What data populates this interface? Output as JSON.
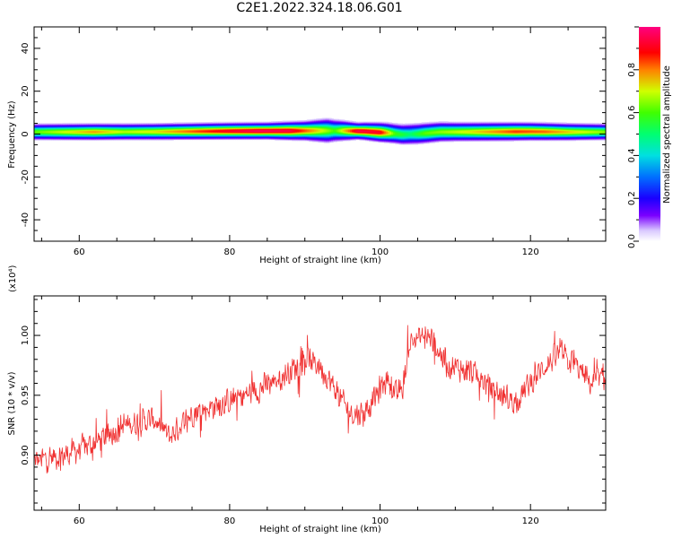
{
  "figure": {
    "title": "C2E1.2022.324.18.06.G01"
  },
  "colorbar": {
    "label": "Normalized spectral amplitude",
    "ticks": [
      "0.0",
      "0.2",
      "0.4",
      "0.6",
      "0.8"
    ],
    "range": [
      0,
      1
    ]
  },
  "chart_data": [
    {
      "type": "heatmap",
      "title": "C2E1.2022.324.18.06.G01",
      "xlabel": "Height of straight line (km)",
      "ylabel": "Frequency (Hz)",
      "xlim": [
        54,
        130
      ],
      "ylim": [
        -50,
        50
      ],
      "xticks": [
        "60",
        "80",
        "100",
        "120"
      ],
      "yticks": [
        "-40",
        "-20",
        "0",
        "20",
        "40"
      ],
      "colorscale": "rainbow (magenta-blue-cyan-green-yellow-red)",
      "band_center_hz": [
        [
          54,
          1.2
        ],
        [
          60,
          1.2
        ],
        [
          70,
          1.3
        ],
        [
          80,
          1.6
        ],
        [
          88,
          1.7
        ],
        [
          92,
          1.8
        ],
        [
          95,
          1.8
        ],
        [
          98,
          1.5
        ],
        [
          101,
          0.8
        ],
        [
          103,
          0.0
        ],
        [
          105,
          0.3
        ],
        [
          108,
          1.2
        ],
        [
          115,
          1.3
        ],
        [
          120,
          1.4
        ],
        [
          125,
          1.2
        ],
        [
          130,
          1.2
        ]
      ],
      "band_halfwidth_hz": [
        [
          54,
          3.0
        ],
        [
          70,
          3.0
        ],
        [
          85,
          3.0
        ],
        [
          90,
          3.5
        ],
        [
          93,
          4.5
        ],
        [
          97,
          3.0
        ],
        [
          100,
          3.5
        ],
        [
          104,
          4.0
        ],
        [
          110,
          3.5
        ],
        [
          130,
          3.0
        ]
      ],
      "peak_amplitude": [
        [
          54,
          0.62
        ],
        [
          58,
          0.7
        ],
        [
          62,
          0.78
        ],
        [
          66,
          0.68
        ],
        [
          70,
          0.72
        ],
        [
          76,
          0.85
        ],
        [
          80,
          0.92
        ],
        [
          84,
          0.97
        ],
        [
          88,
          0.95
        ],
        [
          91,
          0.78
        ],
        [
          94,
          0.6
        ],
        [
          97,
          0.95
        ],
        [
          100,
          0.92
        ],
        [
          102,
          0.6
        ],
        [
          104,
          0.5
        ],
        [
          106,
          0.62
        ],
        [
          112,
          0.72
        ],
        [
          118,
          0.85
        ],
        [
          122,
          0.82
        ],
        [
          126,
          0.72
        ],
        [
          130,
          0.65
        ]
      ]
    },
    {
      "type": "line",
      "xlabel": "Height of straight line (km)",
      "ylabel": "SNR (10 * v/v)",
      "yunit": "(x10⁴)",
      "xlim": [
        54,
        130
      ],
      "ylim": [
        0.854,
        1.033
      ],
      "xticks": [
        "60",
        "80",
        "100",
        "120"
      ],
      "yticks": [
        "0.90",
        "0.95",
        "1.00"
      ],
      "color": "#f03030",
      "series": [
        {
          "trend": [
            [
              54,
              0.895
            ],
            [
              58,
              0.9
            ],
            [
              62,
              0.91
            ],
            [
              66,
              0.925
            ],
            [
              70,
              0.93
            ],
            [
              72,
              0.915
            ],
            [
              75,
              0.935
            ],
            [
              80,
              0.945
            ],
            [
              84,
              0.955
            ],
            [
              88,
              0.97
            ],
            [
              90,
              0.98
            ],
            [
              92,
              0.975
            ],
            [
              94,
              0.955
            ],
            [
              96,
              0.935
            ],
            [
              98,
              0.935
            ],
            [
              100,
              0.955
            ],
            [
              101,
              0.965
            ],
            [
              102,
              0.95
            ],
            [
              103,
              0.955
            ],
            [
              104,
              0.995
            ],
            [
              106,
              1.0
            ],
            [
              107,
              0.995
            ],
            [
              109,
              0.975
            ],
            [
              112,
              0.97
            ],
            [
              114,
              0.96
            ],
            [
              116,
              0.95
            ],
            [
              118,
              0.945
            ],
            [
              120,
              0.96
            ],
            [
              122,
              0.975
            ],
            [
              124,
              0.985
            ],
            [
              126,
              0.975
            ],
            [
              128,
              0.96
            ],
            [
              130,
              0.965
            ]
          ],
          "noise_amplitude": 0.013,
          "points": 1300
        }
      ]
    }
  ]
}
